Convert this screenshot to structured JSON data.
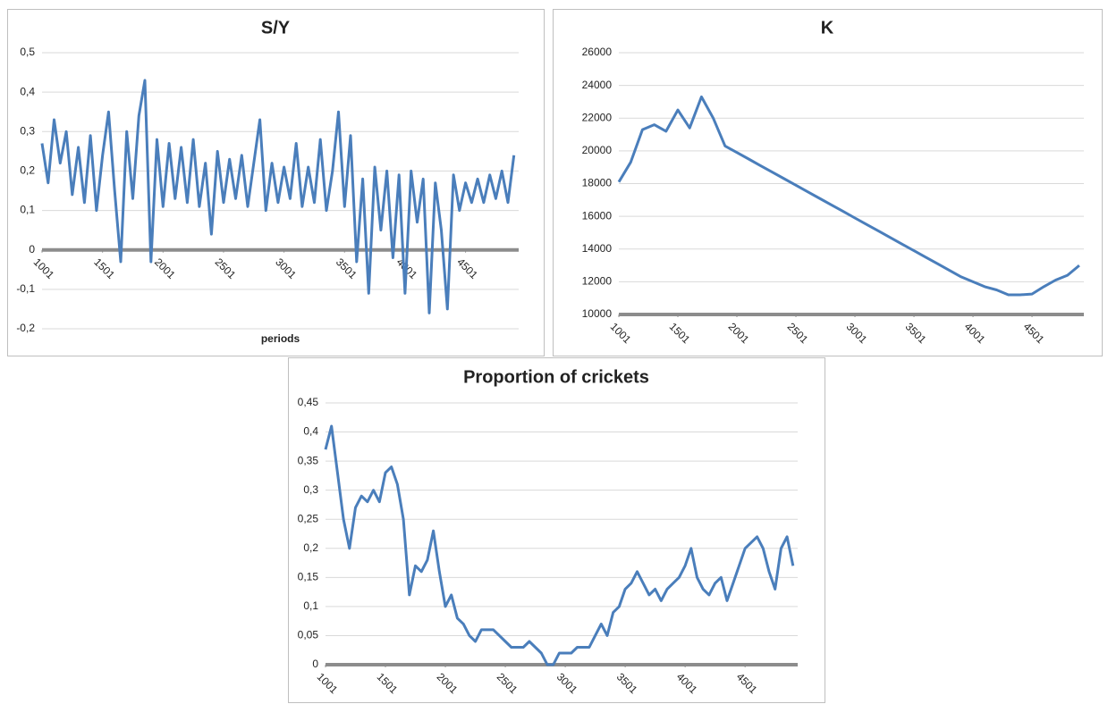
{
  "chart_data": [
    {
      "type": "line",
      "title": "S/Y",
      "x_label": "periods",
      "color": "#4a7ebb",
      "grid": true,
      "x": [
        1001,
        1051,
        1101,
        1151,
        1201,
        1251,
        1301,
        1351,
        1401,
        1451,
        1501,
        1551,
        1601,
        1651,
        1701,
        1751,
        1801,
        1851,
        1901,
        1951,
        2001,
        2051,
        2101,
        2151,
        2201,
        2251,
        2301,
        2351,
        2401,
        2451,
        2501,
        2551,
        2601,
        2651,
        2701,
        2751,
        2801,
        2851,
        2901,
        2951,
        3001,
        3051,
        3101,
        3151,
        3201,
        3251,
        3301,
        3351,
        3401,
        3451,
        3501,
        3551,
        3601,
        3651,
        3701,
        3751,
        3801,
        3851,
        3901,
        3951,
        4001,
        4051,
        4101,
        4151,
        4201,
        4251,
        4301,
        4351,
        4401,
        4451,
        4501,
        4551,
        4601,
        4651,
        4701,
        4751,
        4801,
        4851,
        4901
      ],
      "values": [
        0.27,
        0.17,
        0.33,
        0.22,
        0.3,
        0.14,
        0.26,
        0.12,
        0.29,
        0.1,
        0.24,
        0.35,
        0.15,
        -0.03,
        0.3,
        0.13,
        0.34,
        0.43,
        -0.03,
        0.28,
        0.11,
        0.27,
        0.13,
        0.26,
        0.12,
        0.28,
        0.11,
        0.22,
        0.04,
        0.25,
        0.12,
        0.23,
        0.13,
        0.24,
        0.11,
        0.22,
        0.33,
        0.1,
        0.22,
        0.12,
        0.21,
        0.13,
        0.27,
        0.11,
        0.21,
        0.12,
        0.28,
        0.1,
        0.2,
        0.35,
        0.11,
        0.29,
        -0.03,
        0.18,
        -0.11,
        0.21,
        0.05,
        0.2,
        -0.02,
        0.19,
        -0.11,
        0.2,
        0.07,
        0.18,
        -0.16,
        0.17,
        0.05,
        -0.15,
        0.19,
        0.1,
        0.17,
        0.12,
        0.18,
        0.12,
        0.19,
        0.13,
        0.2,
        0.12,
        0.24
      ],
      "xlim": [
        1001,
        4940
      ],
      "xticks": [
        1001,
        1501,
        2001,
        2501,
        3001,
        3501,
        4001,
        4501
      ],
      "ylim": [
        -0.2,
        0.5
      ],
      "yticks": [
        {
          "value": -0.2,
          "label": "-0,2"
        },
        {
          "value": -0.1,
          "label": "-0,1"
        },
        0,
        {
          "value": 0.1,
          "label": "0,1"
        },
        {
          "value": 0.2,
          "label": "0,2"
        },
        {
          "value": 0.3,
          "label": "0,3"
        },
        {
          "value": 0.4,
          "label": "0,4"
        },
        {
          "value": 0.5,
          "label": "0,5"
        }
      ]
    },
    {
      "type": "line",
      "title": "K",
      "color": "#4a7ebb",
      "grid": true,
      "x": [
        1001,
        1101,
        1201,
        1301,
        1401,
        1501,
        1601,
        1701,
        1801,
        1901,
        2001,
        2101,
        2201,
        2301,
        2401,
        2501,
        2601,
        2701,
        2801,
        2901,
        3001,
        3101,
        3201,
        3301,
        3401,
        3501,
        3601,
        3701,
        3801,
        3901,
        4001,
        4101,
        4201,
        4301,
        4401,
        4501,
        4601,
        4701,
        4801,
        4901
      ],
      "values": [
        18100,
        19300,
        21300,
        21600,
        21200,
        22500,
        21400,
        23300,
        22000,
        20300,
        19900,
        19500,
        19100,
        18700,
        18300,
        17900,
        17500,
        17100,
        16700,
        16300,
        15900,
        15500,
        15100,
        14700,
        14300,
        13900,
        13500,
        13100,
        12700,
        12300,
        12000,
        11700,
        11500,
        11200,
        11200,
        11250,
        11700,
        12100,
        12400,
        13000
      ],
      "xlim": [
        1001,
        4940
      ],
      "xticks": [
        1001,
        1501,
        2001,
        2501,
        3001,
        3501,
        4001,
        4501
      ],
      "ylim": [
        10000,
        26000
      ],
      "yticks": [
        10000,
        12000,
        14000,
        16000,
        18000,
        20000,
        22000,
        24000,
        26000
      ]
    },
    {
      "type": "line",
      "title": "Proportion of crickets",
      "color": "#4a7ebb",
      "grid": true,
      "x": [
        1001,
        1051,
        1101,
        1151,
        1201,
        1251,
        1301,
        1351,
        1401,
        1451,
        1501,
        1551,
        1601,
        1651,
        1701,
        1751,
        1801,
        1851,
        1901,
        1951,
        2001,
        2051,
        2101,
        2151,
        2201,
        2251,
        2301,
        2351,
        2401,
        2451,
        2501,
        2551,
        2601,
        2651,
        2701,
        2751,
        2801,
        2851,
        2901,
        2951,
        3001,
        3051,
        3101,
        3151,
        3201,
        3251,
        3301,
        3351,
        3401,
        3451,
        3501,
        3551,
        3601,
        3651,
        3701,
        3751,
        3801,
        3851,
        3901,
        3951,
        4001,
        4051,
        4101,
        4151,
        4201,
        4251,
        4301,
        4351,
        4401,
        4451,
        4501,
        4551,
        4601,
        4651,
        4701,
        4751,
        4801,
        4851,
        4901
      ],
      "values": [
        0.37,
        0.41,
        0.33,
        0.25,
        0.2,
        0.27,
        0.29,
        0.28,
        0.3,
        0.28,
        0.33,
        0.34,
        0.31,
        0.25,
        0.12,
        0.17,
        0.16,
        0.18,
        0.23,
        0.16,
        0.1,
        0.12,
        0.08,
        0.07,
        0.05,
        0.04,
        0.06,
        0.06,
        0.06,
        0.05,
        0.04,
        0.03,
        0.03,
        0.03,
        0.04,
        0.03,
        0.02,
        0,
        0,
        0.02,
        0.02,
        0.02,
        0.03,
        0.03,
        0.03,
        0.05,
        0.07,
        0.05,
        0.09,
        0.1,
        0.13,
        0.14,
        0.16,
        0.14,
        0.12,
        0.13,
        0.11,
        0.13,
        0.14,
        0.15,
        0.17,
        0.2,
        0.15,
        0.13,
        0.12,
        0.14,
        0.15,
        0.11,
        0.14,
        0.17,
        0.2,
        0.21,
        0.22,
        0.2,
        0.16,
        0.13,
        0.2,
        0.22,
        0.17
      ],
      "xlim": [
        1001,
        4940
      ],
      "xticks": [
        1001,
        1501,
        2001,
        2501,
        3001,
        3501,
        4001,
        4501
      ],
      "ylim": [
        0,
        0.45
      ],
      "yticks": [
        0,
        {
          "value": 0.05,
          "label": "0,05"
        },
        {
          "value": 0.1,
          "label": "0,1"
        },
        {
          "value": 0.15,
          "label": "0,15"
        },
        {
          "value": 0.2,
          "label": "0,2"
        },
        {
          "value": 0.25,
          "label": "0,25"
        },
        {
          "value": 0.3,
          "label": "0,3"
        },
        {
          "value": 0.35,
          "label": "0,35"
        },
        {
          "value": 0.4,
          "label": "0,4"
        },
        {
          "value": 0.45,
          "label": "0,45"
        }
      ]
    }
  ]
}
